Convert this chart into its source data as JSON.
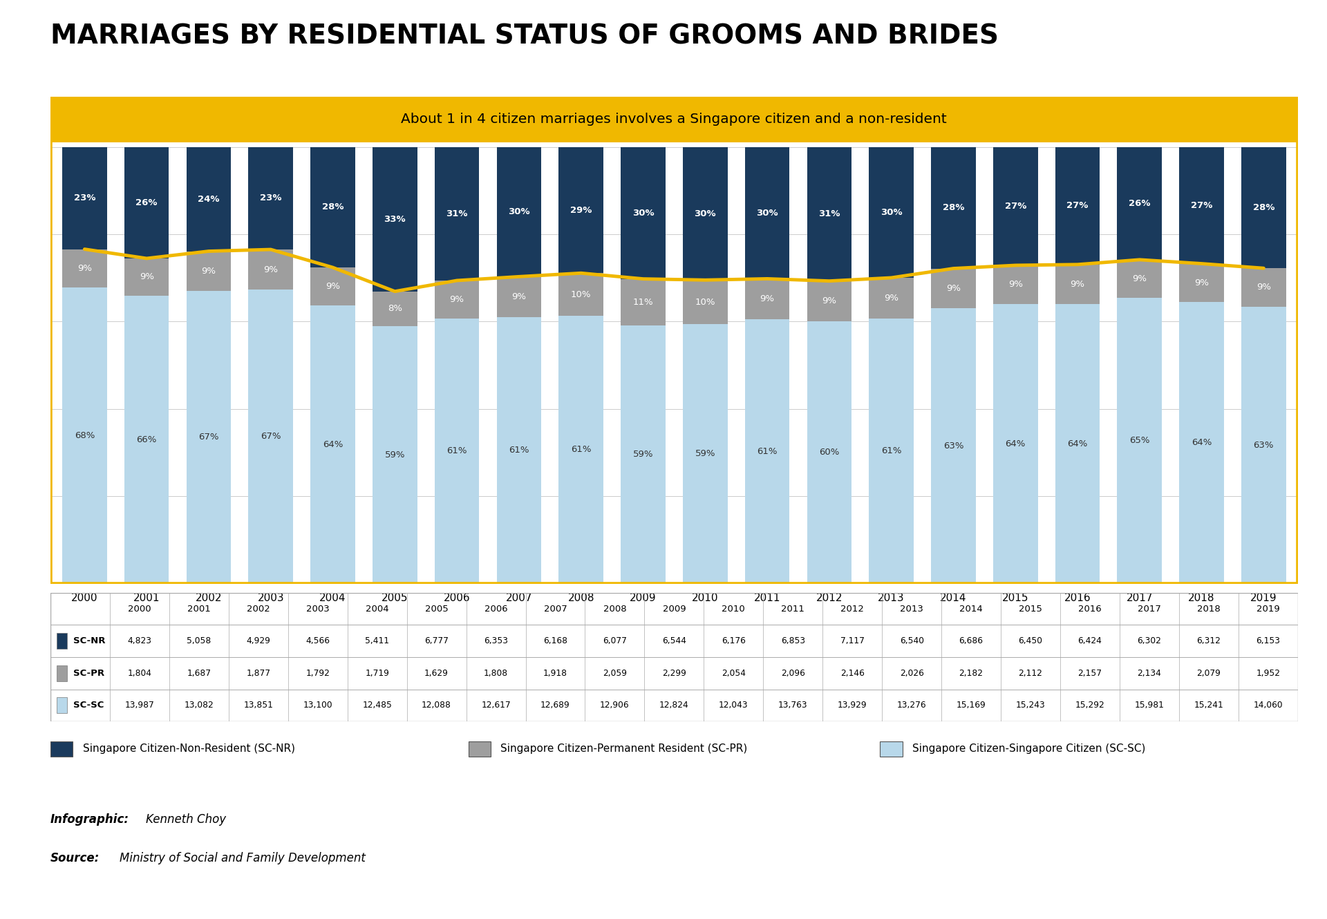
{
  "title": "MARRIAGES BY RESIDENTIAL STATUS OF GROOMS AND BRIDES",
  "subtitle": "About 1 in 4 citizen marriages involves a Singapore citizen and a non-resident",
  "years": [
    2000,
    2001,
    2002,
    2003,
    2004,
    2005,
    2006,
    2007,
    2008,
    2009,
    2010,
    2011,
    2012,
    2013,
    2014,
    2015,
    2016,
    2017,
    2018,
    2019
  ],
  "sc_nr": [
    4823,
    5058,
    4929,
    4566,
    5411,
    6777,
    6353,
    6168,
    6077,
    6544,
    6176,
    6853,
    7117,
    6540,
    6686,
    6450,
    6424,
    6302,
    6312,
    6153
  ],
  "sc_pr": [
    1804,
    1687,
    1877,
    1792,
    1719,
    1629,
    1808,
    1918,
    2059,
    2299,
    2054,
    2096,
    2146,
    2026,
    2182,
    2112,
    2157,
    2134,
    2079,
    1952
  ],
  "sc_sc": [
    13987,
    13082,
    13851,
    13100,
    12485,
    12088,
    12617,
    12689,
    12906,
    12824,
    12043,
    13763,
    13929,
    13276,
    15169,
    15243,
    15292,
    15981,
    15241,
    14060
  ],
  "pct_nr": [
    23,
    26,
    24,
    23,
    28,
    33,
    31,
    30,
    29,
    30,
    30,
    30,
    31,
    30,
    28,
    27,
    27,
    26,
    27,
    28
  ],
  "pct_pr": [
    9,
    9,
    9,
    9,
    9,
    8,
    9,
    9,
    10,
    11,
    10,
    9,
    9,
    9,
    9,
    9,
    9,
    9,
    9,
    9
  ],
  "pct_sc": [
    68,
    66,
    67,
    67,
    64,
    59,
    61,
    61,
    61,
    59,
    59,
    61,
    60,
    61,
    63,
    64,
    64,
    65,
    64,
    63
  ],
  "color_nr": "#1a3a5c",
  "color_pr": "#9e9e9e",
  "color_sc": "#b8d8ea",
  "color_line": "#f0b800",
  "color_box_bg": "#f0b800",
  "color_title": "#000000",
  "legend_labels": [
    "Singapore Citizen-Non-Resident (SC-NR)",
    "Singapore Citizen-Permanent Resident (SC-PR)",
    "Singapore Citizen-Singapore Citizen (SC-SC)"
  ]
}
